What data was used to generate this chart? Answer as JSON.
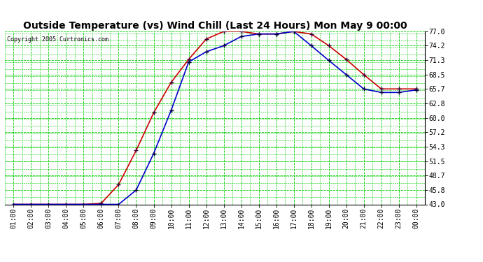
{
  "title": "Outside Temperature (vs) Wind Chill (Last 24 Hours) Mon May 9 00:00",
  "copyright": "Copyright 2005 Curtronics.com",
  "background_color": "#ffffff",
  "plot_bg_color": "#ffffff",
  "grid_color": "#00cc00",
  "grid_minor_color": "#008800",
  "x_labels": [
    "01:00",
    "02:00",
    "03:00",
    "04:00",
    "05:00",
    "06:00",
    "07:00",
    "08:00",
    "09:00",
    "10:00",
    "11:00",
    "12:00",
    "13:00",
    "14:00",
    "15:00",
    "16:00",
    "17:00",
    "18:00",
    "19:00",
    "20:00",
    "21:00",
    "22:00",
    "23:00",
    "00:00"
  ],
  "yticks": [
    43.0,
    45.8,
    48.7,
    51.5,
    54.3,
    57.2,
    60.0,
    62.8,
    65.7,
    68.5,
    71.3,
    74.2,
    77.0
  ],
  "outside_temp": [
    43.0,
    43.0,
    43.0,
    43.0,
    43.0,
    43.2,
    46.9,
    53.6,
    61.0,
    67.0,
    71.5,
    75.5,
    77.0,
    77.0,
    76.5,
    76.5,
    77.0,
    76.5,
    74.2,
    71.5,
    68.5,
    65.7,
    65.7,
    65.7
  ],
  "wind_chill": [
    43.0,
    43.0,
    43.0,
    43.0,
    43.0,
    43.0,
    43.0,
    45.8,
    53.0,
    61.5,
    71.0,
    73.0,
    74.2,
    76.0,
    76.5,
    76.5,
    77.0,
    74.2,
    71.3,
    68.5,
    65.7,
    65.0,
    65.0,
    65.5
  ],
  "temp_color": "#cc0000",
  "chill_color": "#0000cc",
  "marker_color": "#000066",
  "line_width": 1.2,
  "marker_size": 5,
  "title_fontsize": 10,
  "tick_fontsize": 7
}
